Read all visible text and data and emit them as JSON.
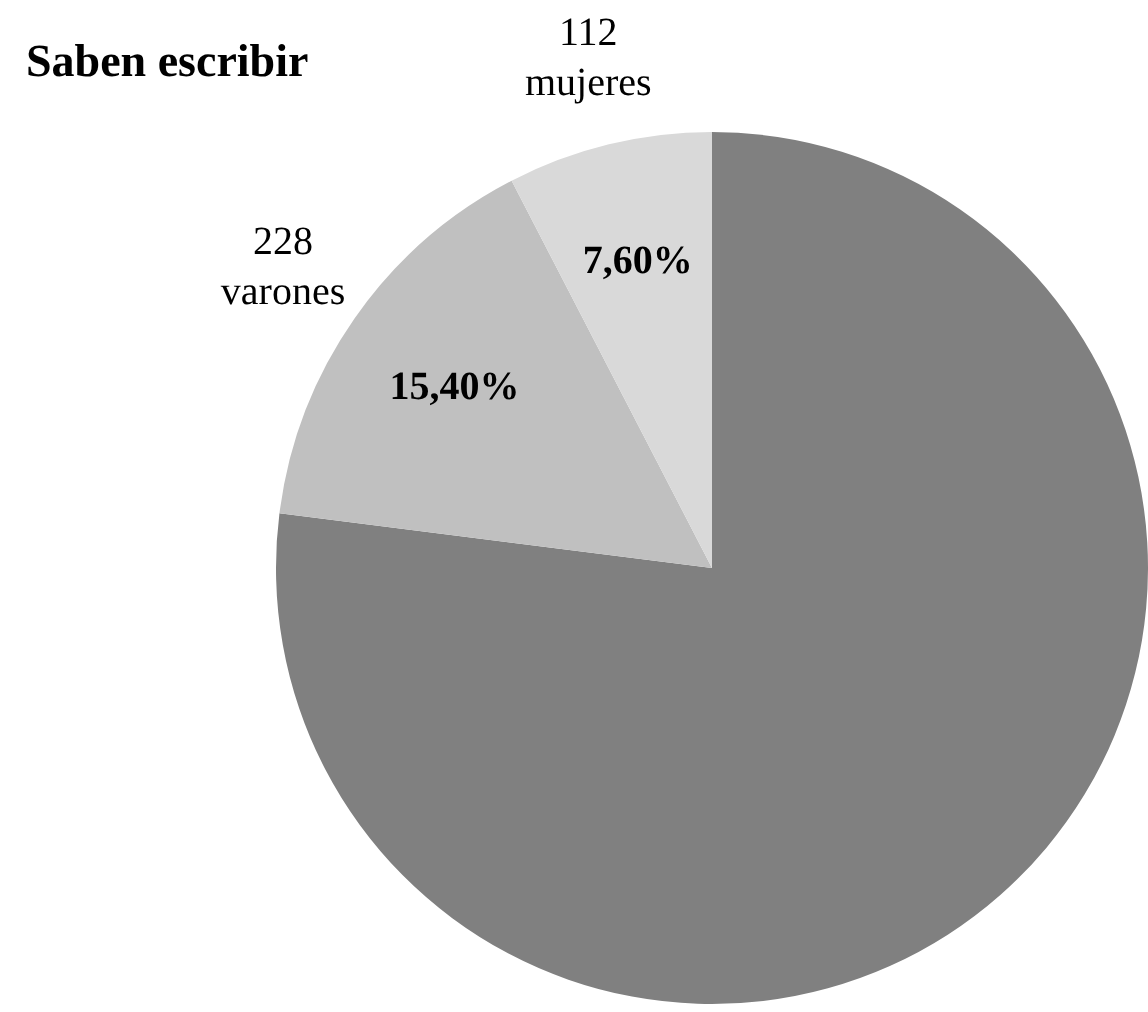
{
  "chart_data": {
    "type": "pie",
    "title": "Saben escribir",
    "categories": [
      null,
      "228 varones",
      "112 mujeres"
    ],
    "values": [
      77.0,
      15.4,
      7.6
    ],
    "colors": [
      "#808080",
      "#c0c0c0",
      "#d9d9d9"
    ],
    "value_labels": [
      null,
      "15,40%",
      "7,60%"
    ]
  }
}
